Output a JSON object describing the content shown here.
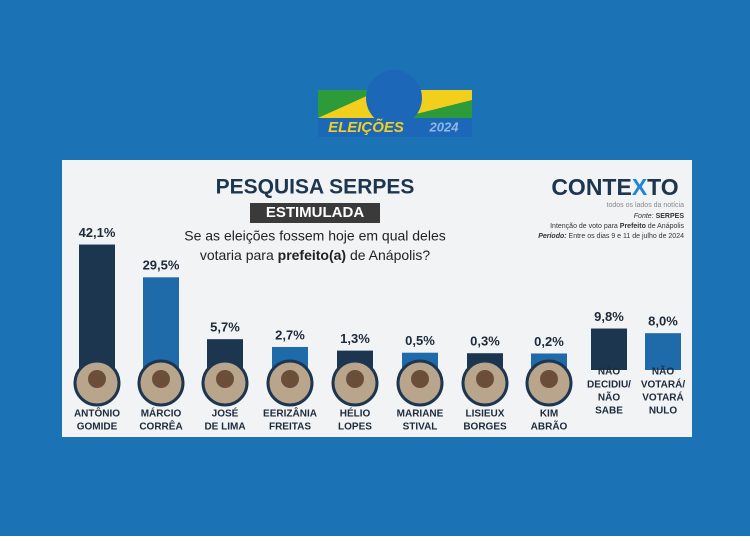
{
  "chart_data": {
    "type": "bar",
    "logo": {
      "title": "ELEIÇÕES",
      "year": "2024"
    },
    "title": "PESQUISA SERPES",
    "subtitle": "ESTIMULADA",
    "question": {
      "line1": "Se as eleições fossem hoje em qual deles",
      "line2_start": "votaria para",
      "line2_bold": "prefeito(a)",
      "line2_end": "de Anápolis?"
    },
    "brand": {
      "name_start": "CONTE",
      "name_x": "X",
      "name_end": "TO",
      "tagline": "todos os lados da notícia"
    },
    "source": {
      "label": "Fonte:",
      "value": "SERPES",
      "line2_start": "Intenção de voto para",
      "line2_bold": "Prefeito",
      "line2_end": "de Anápolis",
      "line3_label": "Período:",
      "line3_value": "Entre os dias 9 e 11 de julho de 2024"
    },
    "categories": [
      [
        "ANTÔNIO",
        "GOMIDE"
      ],
      [
        "MÁRCIO",
        "CORRÊA"
      ],
      [
        "JOSÉ",
        "DE LIMA"
      ],
      [
        "EERIZÂNIA",
        "FREITAS"
      ],
      [
        "HÉLIO",
        "LOPES"
      ],
      [
        "MARIANE",
        "STIVAL"
      ],
      [
        "LISIEUX",
        "BORGES"
      ],
      [
        "KIM",
        "ABRÃO"
      ],
      [
        "NÃO",
        "DECIDIU/",
        "NÃO",
        "SABE"
      ],
      [
        "NÃO",
        "VOTARÁ/",
        "VOTARÁ",
        "NULO"
      ]
    ],
    "values": [
      42.1,
      29.5,
      5.7,
      2.7,
      1.3,
      0.5,
      0.3,
      0.2,
      9.8,
      8.0
    ],
    "value_labels": [
      "42,1%",
      "29,5%",
      "5,7%",
      "2,7%",
      "1,3%",
      "0,5%",
      "0,3%",
      "0,2%",
      "9,8%",
      "8,0%"
    ],
    "colors": [
      "#1d3650",
      "#1f6aa8",
      "#1d3650",
      "#1f6aa8",
      "#1d3650",
      "#1f6aa8",
      "#1d3650",
      "#1f6aa8",
      "#1d3650",
      "#1f6aa8"
    ],
    "photos": [
      true,
      true,
      true,
      true,
      true,
      true,
      true,
      true,
      false,
      false
    ]
  }
}
